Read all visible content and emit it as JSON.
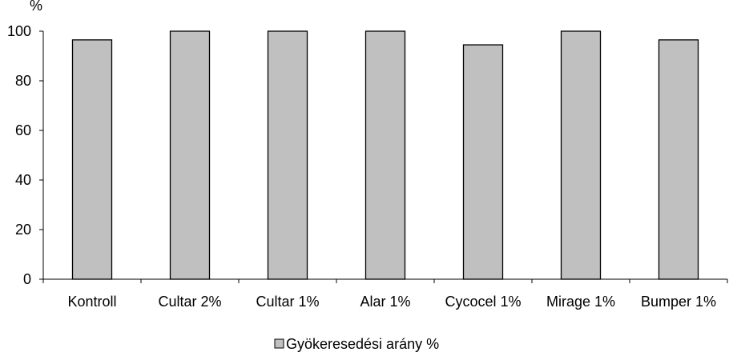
{
  "chart_data": {
    "type": "bar",
    "ylabel": "%",
    "ylim": [
      0,
      100
    ],
    "yticks": [
      0,
      20,
      40,
      60,
      80,
      100
    ],
    "grid": false,
    "legend_position": "bottom-center",
    "categories": [
      "Kontroll",
      "Cultar 2%",
      "Cultar 1%",
      "Alar 1%",
      "Cycocel 1%",
      "Mirage 1%",
      "Bumper 1%"
    ],
    "series": [
      {
        "name": "Gyökeresedési arány %",
        "values": [
          96.5,
          100,
          100,
          100,
          94.5,
          100,
          96.5
        ],
        "color": "#c0c0c0"
      }
    ]
  }
}
